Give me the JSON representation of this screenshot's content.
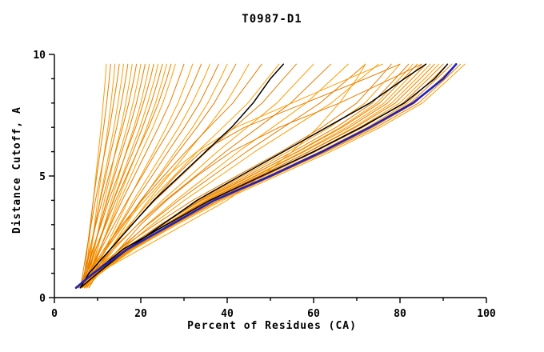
{
  "chart_data": {
    "type": "line",
    "title": "T0987-D1",
    "xlabel": "Percent of Residues (CA)",
    "ylabel": "Distance Cutoff, A",
    "xlim": [
      0,
      100
    ],
    "ylim": [
      0,
      10
    ],
    "x_major_ticks": [
      0,
      20,
      40,
      60,
      80,
      100
    ],
    "x_minor_step": 10,
    "y_major_ticks": [
      0,
      5,
      10
    ],
    "y_minor_step": 1,
    "grid": false,
    "legend": "none",
    "colors": {
      "orange_a": "#ff9d00",
      "orange_b": "#e67e00",
      "black": "#000000",
      "blue": "#2020c0",
      "axis": "#000000"
    },
    "y_levels": [
      0.4,
      1,
      2,
      3,
      4,
      5,
      6,
      7,
      8,
      9,
      9.6
    ],
    "orange_curves_x": [
      [
        7,
        7.4,
        7.9,
        8.4,
        9,
        9.6,
        10.2,
        10.8,
        11.3,
        11.8,
        12
      ],
      [
        6.5,
        7,
        7.6,
        8.3,
        9,
        9.8,
        10.6,
        11.4,
        12.1,
        12.7,
        13
      ],
      [
        7.5,
        8,
        8.6,
        9.3,
        10,
        10.8,
        11.6,
        12.4,
        13.1,
        13.7,
        14
      ],
      [
        6,
        6.6,
        7.5,
        8.5,
        9.5,
        10.6,
        11.7,
        12.8,
        13.7,
        14.6,
        15
      ],
      [
        7,
        7.6,
        8.5,
        9.5,
        10.5,
        11.6,
        12.7,
        13.8,
        14.7,
        15.6,
        16
      ],
      [
        6.5,
        7.2,
        8.3,
        9.4,
        10.6,
        11.9,
        13.1,
        14.4,
        15.5,
        16.5,
        17
      ],
      [
        7.5,
        8.2,
        9.3,
        10.4,
        11.6,
        12.9,
        14.1,
        15.4,
        16.5,
        17.5,
        18
      ],
      [
        6,
        6.9,
        8.2,
        9.6,
        11.1,
        12.6,
        14.2,
        15.8,
        17.2,
        18.4,
        19
      ],
      [
        7,
        7.9,
        9.2,
        10.6,
        12.1,
        13.6,
        15.2,
        16.8,
        18.2,
        19.4,
        20
      ],
      [
        6.5,
        7.5,
        9,
        10.6,
        12.2,
        13.9,
        15.6,
        17.4,
        19,
        20.3,
        21
      ],
      [
        7.5,
        8.5,
        10,
        11.6,
        13.2,
        14.9,
        16.6,
        18.4,
        20,
        21.3,
        22
      ],
      [
        6,
        7.2,
        8.9,
        10.8,
        12.6,
        14.7,
        16.7,
        18.8,
        20.6,
        22.2,
        23
      ],
      [
        7,
        8.2,
        9.9,
        11.8,
        13.6,
        15.7,
        17.7,
        19.8,
        21.6,
        23.2,
        24
      ],
      [
        6.5,
        7.8,
        9.6,
        11.7,
        13.7,
        15.9,
        18.2,
        20.4,
        22.4,
        24.1,
        25
      ],
      [
        7.5,
        8.8,
        10.6,
        12.7,
        14.7,
        16.9,
        19.2,
        21.4,
        23.4,
        25.1,
        26
      ],
      [
        6,
        7.5,
        9.6,
        11.9,
        14.2,
        16.7,
        19.2,
        21.8,
        24.1,
        26,
        27
      ],
      [
        7,
        8.5,
        10.6,
        12.9,
        15.2,
        17.7,
        20.2,
        22.8,
        25.1,
        27,
        28
      ],
      [
        6.5,
        8.1,
        10.5,
        13.1,
        15.7,
        18.5,
        21.3,
        24.1,
        26.7,
        28.8,
        30
      ],
      [
        7.5,
        9.2,
        11.7,
        14.4,
        17.1,
        20,
        23,
        25.9,
        28.6,
        30.8,
        32
      ],
      [
        6,
        8,
        10.8,
        13.8,
        16.9,
        20.3,
        23.6,
        27,
        30.1,
        32.6,
        34
      ],
      [
        7,
        9,
        11.9,
        15.1,
        18.3,
        21.8,
        25.3,
        28.8,
        31.9,
        34.6,
        36
      ],
      [
        6.5,
        8.7,
        11.9,
        15.3,
        18.8,
        22.6,
        26.3,
        30.1,
        33.6,
        36.4,
        38
      ],
      [
        7.5,
        9.8,
        13,
        16.6,
        20.2,
        24.1,
        28,
        32,
        35.5,
        38.4,
        40
      ],
      [
        6,
        8.5,
        12.1,
        16.1,
        20,
        24.4,
        28.7,
        33,
        37,
        40.2,
        42
      ],
      [
        7,
        9.7,
        13.5,
        17.6,
        21.8,
        26.4,
        30.9,
        35.5,
        39.7,
        43.1,
        45
      ],
      [
        6,
        8.1,
        11.5,
        15.7,
        20.3,
        25.3,
        30.4,
        35.8,
        41.3,
        45.5,
        48
      ],
      [
        7,
        9.3,
        12.9,
        17.4,
        22.3,
        27.7,
        33.1,
        39,
        44.8,
        49.3,
        52
      ],
      [
        6.5,
        9,
        12.9,
        17.9,
        23.3,
        29.3,
        35.2,
        41.6,
        48.1,
        53,
        56
      ],
      [
        7,
        9.7,
        13.9,
        19.2,
        25,
        31.4,
        37.7,
        44.6,
        51.5,
        56.8,
        60
      ],
      [
        6,
        8.9,
        13.5,
        19.3,
        25.7,
        32.7,
        39.6,
        47.2,
        54.7,
        60.5,
        64
      ],
      [
        7.5,
        10.5,
        15.4,
        21.4,
        28.1,
        35.3,
        42.6,
        50.5,
        58.3,
        64.4,
        68
      ],
      [
        6.5,
        9.8,
        15,
        21.6,
        28.8,
        36.6,
        44.5,
        53,
        61.5,
        68.1,
        72
      ],
      [
        7,
        10.4,
        15.8,
        22.6,
        30.1,
        38.3,
        46.4,
        55.3,
        64.1,
        70.9,
        75
      ],
      [
        5,
        8.7,
        15.2,
        23.3,
        32,
        42.2,
        52.5,
        61.9,
        70,
        75.1,
        78
      ],
      [
        6,
        9.7,
        16.4,
        24.5,
        33.4,
        43.7,
        54.1,
        63.7,
        71.9,
        77,
        80
      ],
      [
        5.5,
        9.3,
        16.2,
        24.6,
        33.8,
        44.5,
        55.2,
        65.2,
        73.6,
        78.9,
        82
      ],
      [
        6.5,
        10.3,
        17.2,
        25.6,
        34.8,
        45.5,
        56.2,
        66.2,
        74.6,
        79.9,
        83
      ],
      [
        5,
        9,
        16.1,
        24.8,
        34.2,
        45.3,
        56.4,
        66.6,
        75.3,
        80.8,
        84
      ],
      [
        6,
        10,
        17.1,
        25.8,
        35.2,
        46.3,
        57.4,
        67.6,
        76.3,
        81.8,
        85
      ],
      [
        5.5,
        9.5,
        16.8,
        25.6,
        35.3,
        46.6,
        57.8,
        68.3,
        77.1,
        82.8,
        86
      ],
      [
        6.5,
        10.5,
        17.8,
        26.6,
        36.3,
        47.6,
        58.8,
        69.3,
        78.1,
        83.8,
        87
      ],
      [
        5,
        9.2,
        16.6,
        25.8,
        35.7,
        47.3,
        59,
        69.7,
        78.9,
        84.7,
        88
      ],
      [
        6,
        10.2,
        17.6,
        26.8,
        36.7,
        48.3,
        60,
        70.7,
        79.9,
        85.7,
        89
      ],
      [
        5.5,
        9.7,
        17.3,
        26.6,
        36.8,
        48.6,
        60.4,
        71.4,
        80.7,
        86.6,
        90
      ],
      [
        6.5,
        10.7,
        18.3,
        27.6,
        37.8,
        49.6,
        61.4,
        72.4,
        81.7,
        87.6,
        91
      ],
      [
        5,
        9.4,
        17.2,
        26.8,
        37.2,
        49.4,
        61.6,
        72.8,
        82.4,
        88.5,
        92
      ],
      [
        6,
        10.4,
        18.2,
        27.8,
        38.2,
        50.4,
        62.6,
        73.8,
        83.4,
        89.5,
        93
      ],
      [
        5.5,
        9.9,
        17.9,
        27.6,
        38.2,
        50.6,
        63,
        74.5,
        84.3,
        90.5,
        94
      ],
      [
        6,
        10.5,
        18.5,
        28.3,
        38.9,
        51.4,
        63.9,
        75.4,
        85.2,
        91.4,
        95
      ],
      [
        7,
        9,
        13,
        18,
        23,
        28,
        34,
        44,
        58,
        72,
        80
      ],
      [
        6,
        8,
        12,
        16,
        21,
        26,
        33,
        42,
        55,
        68,
        76
      ],
      [
        8,
        10,
        15,
        20,
        26,
        33,
        41,
        52,
        66,
        78,
        85
      ],
      [
        5,
        10,
        20,
        30,
        40,
        48,
        55,
        61,
        66,
        70,
        72
      ]
    ],
    "black_curves_x": [
      [
        6,
        8,
        13,
        18,
        23,
        29,
        35,
        41,
        46,
        50,
        53
      ],
      [
        6,
        10,
        17,
        25,
        33,
        43,
        53,
        63,
        73,
        81,
        86
      ],
      [
        5,
        9,
        16,
        26,
        36,
        48,
        60,
        71,
        81,
        88,
        91
      ]
    ],
    "blue_curve_x": [
      5,
      9,
      17,
      27,
      37,
      50,
      62,
      73,
      83,
      90,
      93
    ]
  }
}
